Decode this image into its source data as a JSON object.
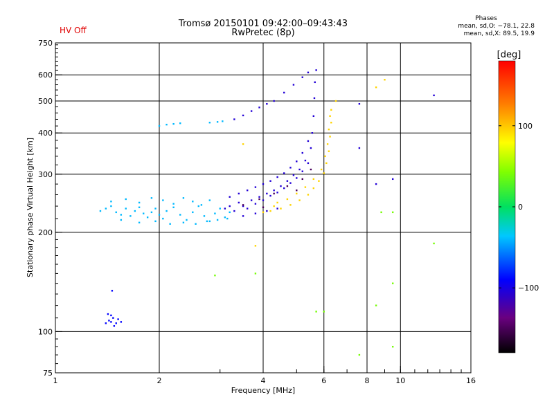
{
  "header": {
    "status": "HV Off",
    "title": "Tromsø 20150101 09:42:00–09:43:43",
    "subtitle": "RwPretec (8p)"
  },
  "stats": {
    "heading": "Phases",
    "line_o": "mean, sd,O: −78.1, 22.8",
    "line_x": "mean, sd,X:  89.5, 19.9"
  },
  "colorbar": {
    "label": "[deg]",
    "min": -180,
    "max": 180,
    "ticks": [
      100,
      0,
      -100
    ],
    "tick_labels": [
      "100",
      "0",
      "−100"
    ]
  },
  "chart_data": {
    "type": "scatter",
    "xlabel": "Frequency [MHz]",
    "ylabel": "Stationary phase Virtual Height [km]",
    "x_scale": "log",
    "y_scale": "log",
    "xlim": [
      1,
      16
    ],
    "ylim": [
      75,
      750
    ],
    "x_ticks": [
      1,
      2,
      4,
      6,
      8,
      10,
      16
    ],
    "x_tick_labels": [
      "1",
      "2",
      "4",
      "6",
      "8",
      "10",
      "16"
    ],
    "y_ticks": [
      75,
      100,
      200,
      300,
      400,
      500,
      600,
      750
    ],
    "y_tick_labels": [
      "75",
      "100",
      "200",
      "300",
      "400",
      "500",
      "600",
      "750"
    ],
    "grid": true,
    "series": [
      {
        "color_value": -90,
        "points": [
          [
            1.4,
            106
          ],
          [
            1.43,
            108
          ],
          [
            1.45,
            107
          ],
          [
            1.47,
            110
          ],
          [
            1.5,
            106
          ],
          [
            1.52,
            109
          ],
          [
            1.45,
            112
          ],
          [
            1.48,
            104
          ],
          [
            1.55,
            107
          ],
          [
            1.42,
            113
          ],
          [
            1.46,
            133
          ]
        ]
      },
      {
        "color_value": -40,
        "points": [
          [
            1.35,
            232
          ],
          [
            1.4,
            236
          ],
          [
            1.45,
            240
          ],
          [
            1.5,
            230
          ],
          [
            1.55,
            226
          ],
          [
            1.6,
            236
          ],
          [
            1.65,
            224
          ],
          [
            1.7,
            232
          ],
          [
            1.75,
            238
          ],
          [
            1.8,
            228
          ],
          [
            1.85,
            222
          ],
          [
            1.9,
            230
          ],
          [
            1.95,
            236
          ],
          [
            2.0,
            226
          ],
          [
            2.05,
            220
          ],
          [
            2.1,
            232
          ],
          [
            2.2,
            238
          ],
          [
            2.3,
            226
          ],
          [
            2.4,
            218
          ],
          [
            2.5,
            230
          ],
          [
            2.6,
            240
          ],
          [
            2.7,
            224
          ],
          [
            2.8,
            216
          ],
          [
            2.9,
            228
          ],
          [
            3.0,
            236
          ],
          [
            3.1,
            222
          ],
          [
            3.2,
            230
          ],
          [
            1.45,
            248
          ],
          [
            1.6,
            252
          ],
          [
            1.75,
            246
          ],
          [
            1.9,
            254
          ],
          [
            2.05,
            250
          ],
          [
            2.2,
            244
          ],
          [
            2.35,
            254
          ],
          [
            2.5,
            248
          ],
          [
            2.65,
            242
          ],
          [
            2.8,
            250
          ],
          [
            1.55,
            218
          ],
          [
            1.75,
            214
          ],
          [
            1.95,
            216
          ],
          [
            2.15,
            212
          ],
          [
            2.35,
            214
          ],
          [
            2.55,
            212
          ],
          [
            2.75,
            216
          ],
          [
            2.95,
            218
          ],
          [
            3.15,
            220
          ],
          [
            2.0,
            420
          ],
          [
            2.1,
            424
          ],
          [
            2.2,
            426
          ],
          [
            2.3,
            428
          ],
          [
            2.8,
            430
          ],
          [
            2.95,
            432
          ],
          [
            3.05,
            434
          ]
        ]
      },
      {
        "color_value": -105,
        "points": [
          [
            3.1,
            236
          ],
          [
            3.2,
            240
          ],
          [
            3.3,
            232
          ],
          [
            3.4,
            246
          ],
          [
            3.5,
            240
          ],
          [
            3.6,
            236
          ],
          [
            3.7,
            250
          ],
          [
            3.8,
            244
          ],
          [
            3.9,
            256
          ],
          [
            4.0,
            250
          ],
          [
            4.1,
            262
          ],
          [
            4.2,
            258
          ],
          [
            4.3,
            268
          ],
          [
            4.4,
            264
          ],
          [
            4.5,
            276
          ],
          [
            4.6,
            272
          ],
          [
            4.7,
            286
          ],
          [
            4.8,
            282
          ],
          [
            4.9,
            298
          ],
          [
            5.0,
            292
          ],
          [
            5.1,
            310
          ],
          [
            5.2,
            306
          ],
          [
            5.3,
            330
          ],
          [
            5.4,
            324
          ],
          [
            5.5,
            360
          ],
          [
            5.55,
            400
          ],
          [
            5.6,
            450
          ],
          [
            5.63,
            510
          ],
          [
            5.65,
            570
          ],
          [
            5.7,
            620
          ],
          [
            3.2,
            256
          ],
          [
            3.4,
            262
          ],
          [
            3.6,
            268
          ],
          [
            3.8,
            274
          ],
          [
            4.0,
            280
          ],
          [
            4.2,
            286
          ],
          [
            4.4,
            294
          ],
          [
            4.6,
            302
          ],
          [
            4.8,
            314
          ],
          [
            5.0,
            328
          ],
          [
            5.2,
            348
          ],
          [
            5.4,
            378
          ],
          [
            3.3,
            440
          ],
          [
            3.5,
            452
          ],
          [
            3.7,
            466
          ],
          [
            3.9,
            478
          ],
          [
            4.1,
            490
          ],
          [
            4.3,
            500
          ],
          [
            4.6,
            530
          ],
          [
            4.9,
            560
          ],
          [
            5.2,
            590
          ],
          [
            5.4,
            610
          ],
          [
            3.5,
            224
          ],
          [
            3.8,
            228
          ],
          [
            4.1,
            232
          ],
          [
            4.4,
            236
          ],
          [
            9.5,
            290
          ],
          [
            8.5,
            280
          ],
          [
            7.6,
            490
          ],
          [
            7.6,
            360
          ],
          [
            12.5,
            520
          ]
        ]
      },
      {
        "color_value": -150,
        "points": [
          [
            3.5,
            242
          ],
          [
            3.9,
            252
          ],
          [
            4.3,
            262
          ],
          [
            4.7,
            276
          ],
          [
            5.0,
            268
          ],
          [
            5.2,
            290
          ],
          [
            5.5,
            310
          ],
          [
            4.0,
            238
          ]
        ]
      },
      {
        "color_value": 95,
        "points": [
          [
            4.2,
            232
          ],
          [
            4.5,
            236
          ],
          [
            4.8,
            242
          ],
          [
            5.1,
            250
          ],
          [
            5.4,
            260
          ],
          [
            5.6,
            272
          ],
          [
            5.8,
            286
          ],
          [
            6.0,
            302
          ],
          [
            6.1,
            324
          ],
          [
            6.2,
            352
          ],
          [
            6.25,
            390
          ],
          [
            6.3,
            430
          ],
          [
            6.3,
            470
          ],
          [
            4.4,
            246
          ],
          [
            4.7,
            252
          ],
          [
            5.0,
            262
          ],
          [
            5.3,
            274
          ],
          [
            5.6,
            290
          ],
          [
            5.9,
            310
          ],
          [
            6.05,
            340
          ],
          [
            6.15,
            370
          ],
          [
            6.2,
            410
          ],
          [
            6.25,
            450
          ],
          [
            4.0,
            230
          ],
          [
            4.3,
            240
          ],
          [
            3.8,
            182
          ],
          [
            3.5,
            370
          ],
          [
            6.5,
            500
          ],
          [
            9.0,
            580
          ],
          [
            8.5,
            550
          ]
        ]
      },
      {
        "color_value": 40,
        "points": [
          [
            3.8,
            150
          ],
          [
            2.9,
            148
          ],
          [
            5.7,
            115
          ],
          [
            6.0,
            115
          ],
          [
            8.8,
            230
          ],
          [
            9.5,
            230
          ],
          [
            8.5,
            120
          ],
          [
            9.5,
            140
          ],
          [
            9.5,
            90
          ],
          [
            7.6,
            85
          ],
          [
            12.5,
            185
          ]
        ]
      }
    ]
  }
}
